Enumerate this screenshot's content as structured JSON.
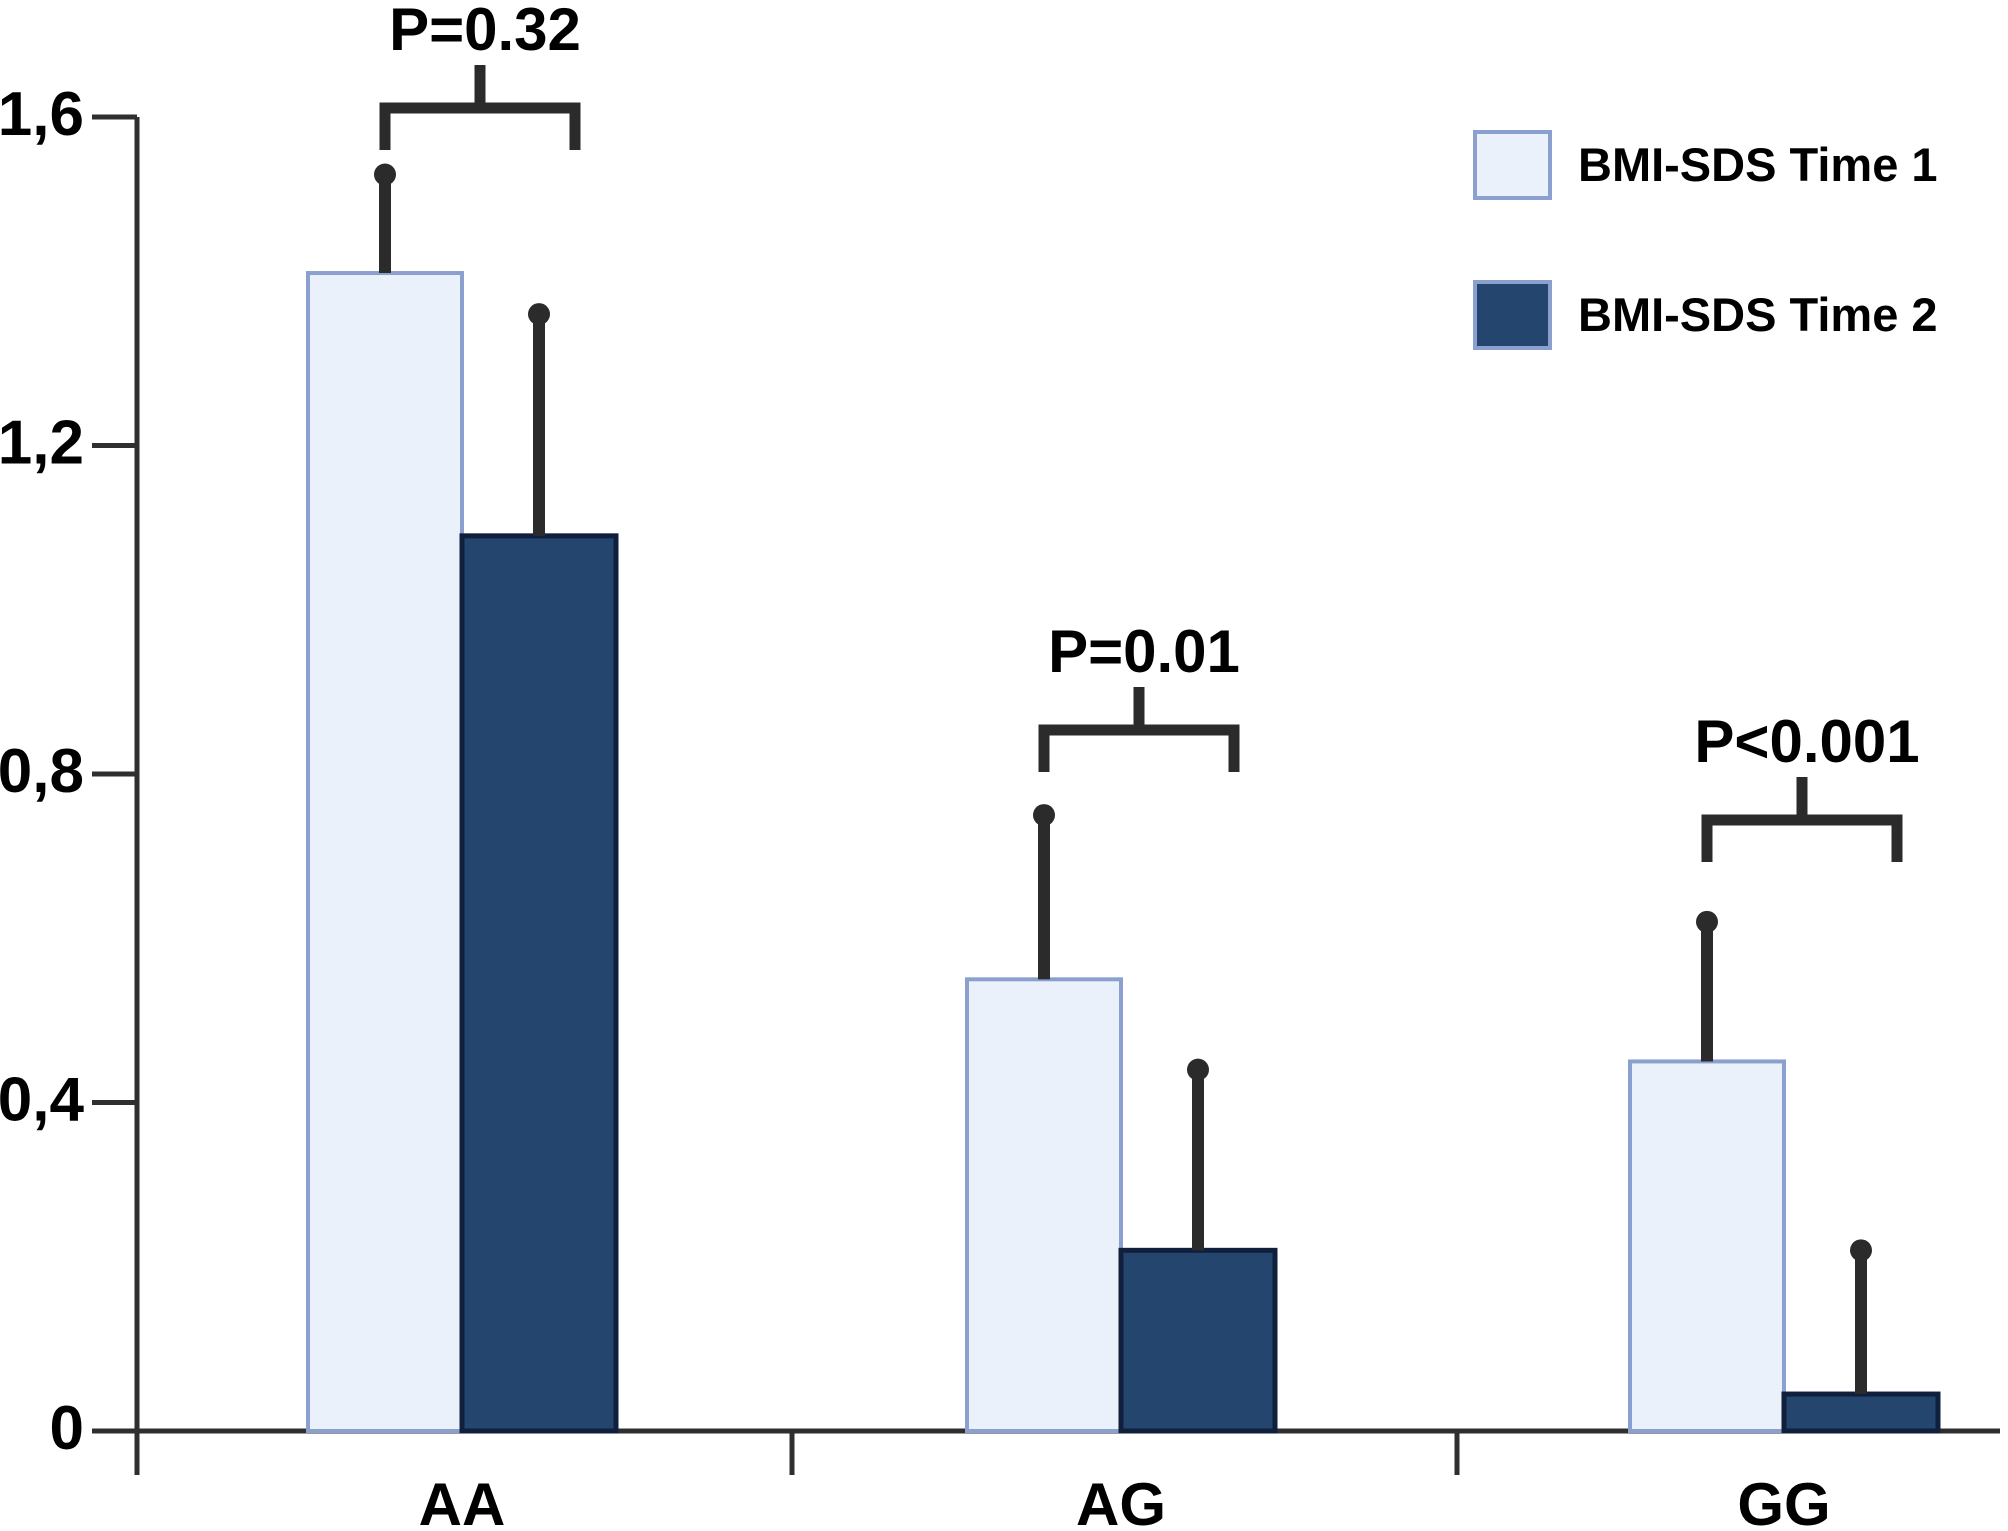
{
  "chart_data": {
    "type": "bar",
    "title": "",
    "categories": [
      "AA",
      "AG",
      "GG"
    ],
    "y_axis": {
      "tick_labels": [
        "1,6",
        "1,2",
        "0,8",
        "0,4",
        "0"
      ],
      "tick_values": [
        1.6,
        1.2,
        0.8,
        0.4,
        0
      ],
      "range": [
        0,
        1.6
      ],
      "decimal_separator": "comma",
      "grid": false
    },
    "series": [
      {
        "name": "BMI-SDS Time 1",
        "values": [
          1.41,
          0.55,
          0.45
        ],
        "upper_error_tips": [
          1.53,
          0.75,
          0.62
        ],
        "fill": "#EBF1FA",
        "stroke": "#8CA0D0"
      },
      {
        "name": "BMI-SDS Time 2",
        "values": [
          1.09,
          0.22,
          0.045
        ],
        "upper_error_tips": [
          1.36,
          0.44,
          0.22
        ],
        "fill": "#24466E",
        "stroke": "#101F3C"
      }
    ],
    "annotations": {
      "p_values": [
        "P=0.32",
        "P=0.01",
        "P<0.001"
      ]
    },
    "legend": {
      "position": "top-right",
      "entries": [
        "BMI-SDS Time 1",
        "BMI-SDS Time 2"
      ]
    }
  },
  "colors": {
    "axis": "#2F2F2F",
    "error_bar": "#2B2B2B",
    "text": "#000000",
    "background": "#FFFFFF"
  }
}
